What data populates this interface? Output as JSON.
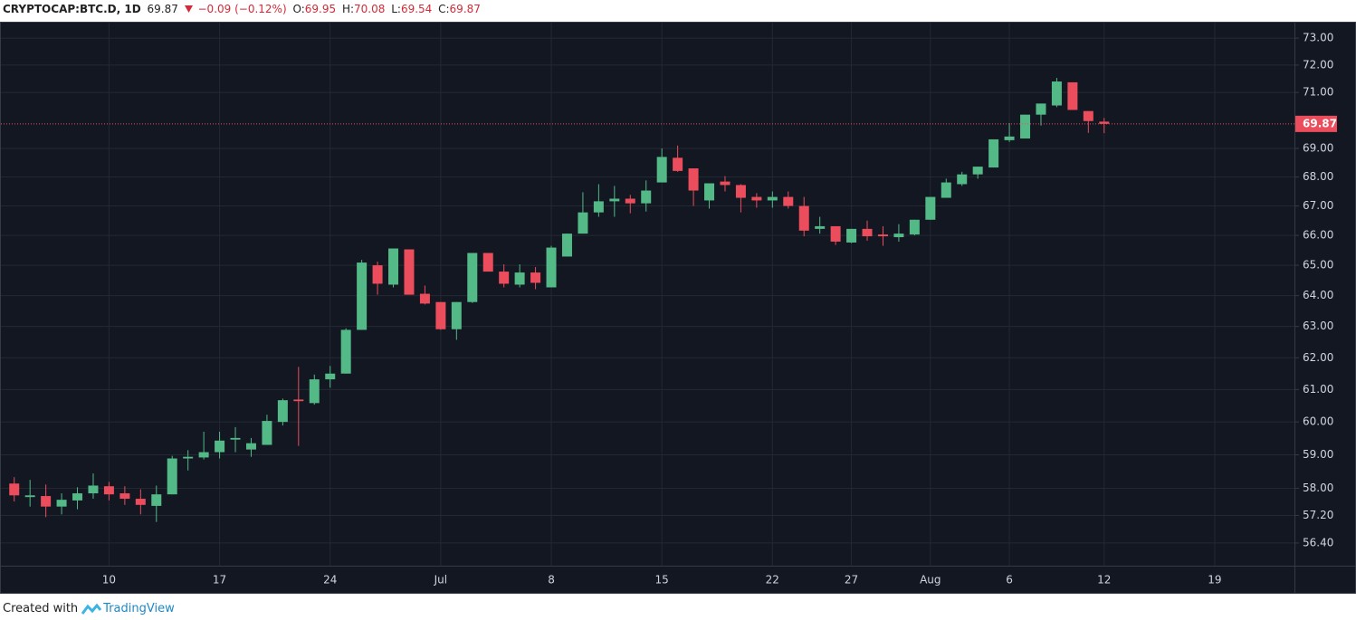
{
  "chart_data": {
    "type": "candlestick",
    "title": "CRYPTOCAP:BTC.D, 1D",
    "change": "−0.09 (−0.12%)",
    "ohlc_labels": [
      "O:",
      "H:",
      "L:",
      "C:"
    ],
    "categories": [
      null,
      null,
      null,
      null,
      null,
      null,
      "10",
      null,
      null,
      null,
      null,
      null,
      null,
      "17",
      null,
      null,
      null,
      null,
      null,
      null,
      "24",
      null,
      null,
      null,
      null,
      null,
      null,
      "Jul",
      null,
      null,
      null,
      null,
      null,
      null,
      "8",
      null,
      null,
      null,
      null,
      null,
      null,
      "15",
      null,
      null,
      null,
      null,
      null,
      null,
      "22",
      null,
      null,
      null,
      null,
      "27",
      null,
      null,
      null,
      null,
      "Aug",
      null,
      null,
      null,
      null,
      "6",
      null,
      null,
      null,
      null,
      null,
      "12",
      null,
      null,
      null,
      null,
      null,
      null,
      "19",
      null,
      null,
      null,
      null
    ],
    "open": [
      58.14,
      57.74,
      57.77,
      57.46,
      57.64,
      57.85,
      58.06,
      57.85,
      57.69,
      57.48,
      57.82,
      58.89,
      58.92,
      59.08,
      59.46,
      59.16,
      59.3,
      60.0,
      60.69,
      60.58,
      61.32,
      61.5,
      62.89,
      65.0,
      64.36,
      65.53,
      64.06,
      63.79,
      62.91,
      63.79,
      65.41,
      64.79,
      64.36,
      64.76,
      64.27,
      65.29,
      66.06,
      66.78,
      67.16,
      67.25,
      67.09,
      67.81,
      68.67,
      68.3,
      67.19,
      67.84,
      67.72,
      67.31,
      67.19,
      67.31,
      67.0,
      66.22,
      66.31,
      65.76,
      66.22,
      66.03,
      65.94,
      66.03,
      66.53,
      67.28,
      67.75,
      68.09,
      68.33,
      69.29,
      69.35,
      70.2,
      70.53,
      71.37,
      70.33,
      69.95,
      null,
      null,
      null,
      null,
      null,
      null,
      null,
      null,
      null,
      null,
      null
    ],
    "high": [
      58.33,
      58.25,
      58.11,
      57.85,
      58.03,
      58.44,
      58.19,
      58.06,
      57.97,
      58.08,
      58.97,
      59.14,
      59.7,
      59.7,
      59.84,
      59.51,
      60.22,
      60.72,
      61.71,
      61.47,
      61.74,
      62.94,
      65.18,
      65.12,
      65.56,
      65.53,
      64.33,
      63.79,
      63.79,
      65.41,
      65.41,
      65.03,
      65.03,
      64.94,
      65.65,
      66.06,
      67.47,
      67.75,
      67.69,
      67.38,
      67.88,
      69.0,
      69.1,
      68.3,
      67.78,
      68.03,
      67.75,
      67.44,
      67.5,
      67.5,
      67.31,
      66.63,
      66.31,
      66.22,
      66.5,
      66.31,
      66.38,
      66.53,
      67.31,
      67.94,
      68.18,
      68.36,
      69.32,
      69.9,
      70.2,
      70.6,
      71.53,
      71.37,
      70.33,
      70.08,
      null,
      null,
      null,
      null,
      null,
      null,
      null,
      null,
      null,
      null,
      null
    ],
    "low": [
      57.61,
      57.46,
      57.15,
      57.23,
      57.38,
      57.69,
      57.64,
      57.51,
      57.23,
      57.01,
      57.82,
      58.53,
      58.86,
      58.89,
      59.08,
      58.94,
      59.3,
      59.89,
      59.27,
      60.53,
      61.06,
      61.5,
      62.89,
      64.03,
      64.27,
      64.03,
      63.71,
      62.89,
      62.57,
      63.76,
      64.79,
      64.27,
      64.27,
      64.21,
      64.27,
      65.29,
      66.06,
      66.63,
      66.63,
      66.75,
      66.81,
      67.81,
      68.18,
      67.0,
      66.91,
      67.5,
      66.78,
      66.94,
      66.94,
      66.91,
      65.97,
      66.06,
      65.68,
      65.74,
      65.82,
      65.65,
      65.79,
      66.0,
      66.53,
      67.28,
      67.69,
      67.94,
      68.33,
      69.23,
      69.35,
      69.81,
      70.47,
      70.37,
      69.55,
      69.54,
      null,
      null,
      null,
      null,
      null,
      null,
      null,
      null,
      null,
      null,
      null
    ],
    "close": [
      57.79,
      57.79,
      57.46,
      57.66,
      57.85,
      58.08,
      57.82,
      57.69,
      57.51,
      57.82,
      58.89,
      58.94,
      59.08,
      59.43,
      59.51,
      59.35,
      60.03,
      60.67,
      60.64,
      61.32,
      61.5,
      62.89,
      65.09,
      64.39,
      65.56,
      64.03,
      63.74,
      62.91,
      63.79,
      65.41,
      64.79,
      64.39,
      64.76,
      64.42,
      65.59,
      66.06,
      66.78,
      67.16,
      67.25,
      67.09,
      67.53,
      68.7,
      68.21,
      67.53,
      67.78,
      67.72,
      67.28,
      67.19,
      67.31,
      67.0,
      66.16,
      66.31,
      65.79,
      66.22,
      65.97,
      65.97,
      66.06,
      66.53,
      67.31,
      67.81,
      68.09,
      68.36,
      69.32,
      69.42,
      70.2,
      70.6,
      71.4,
      70.37,
      69.97,
      69.87,
      null,
      null,
      null,
      null,
      null,
      null,
      null,
      null,
      null,
      null,
      null
    ],
    "up_color": "#53b987",
    "down_color": "#eb4d5c",
    "log_scale": true,
    "grid": true,
    "ylim": [
      55.75,
      73.58
    ],
    "yticks": [
      {
        "value": 56.4,
        "label": "56.40"
      },
      {
        "value": 57.2,
        "label": "57.20"
      },
      {
        "value": 58,
        "label": "58.00"
      },
      {
        "value": 59,
        "label": "59.00"
      },
      {
        "value": 60,
        "label": "60.00"
      },
      {
        "value": 61,
        "label": "61.00"
      },
      {
        "value": 62,
        "label": "62.00"
      },
      {
        "value": 63,
        "label": "63.00"
      },
      {
        "value": 64,
        "label": "64.00"
      },
      {
        "value": 65,
        "label": "65.00"
      },
      {
        "value": 66,
        "label": "66.00"
      },
      {
        "value": 67,
        "label": "67.00"
      },
      {
        "value": 68,
        "label": "68.00"
      },
      {
        "value": 69,
        "label": "69.00"
      },
      {
        "value": 71,
        "label": "71.00"
      },
      {
        "value": 72,
        "label": "72.00"
      },
      {
        "value": 73,
        "label": "73.00"
      }
    ]
  },
  "footer": {
    "text": "Created with",
    "brand": "TradingView"
  }
}
